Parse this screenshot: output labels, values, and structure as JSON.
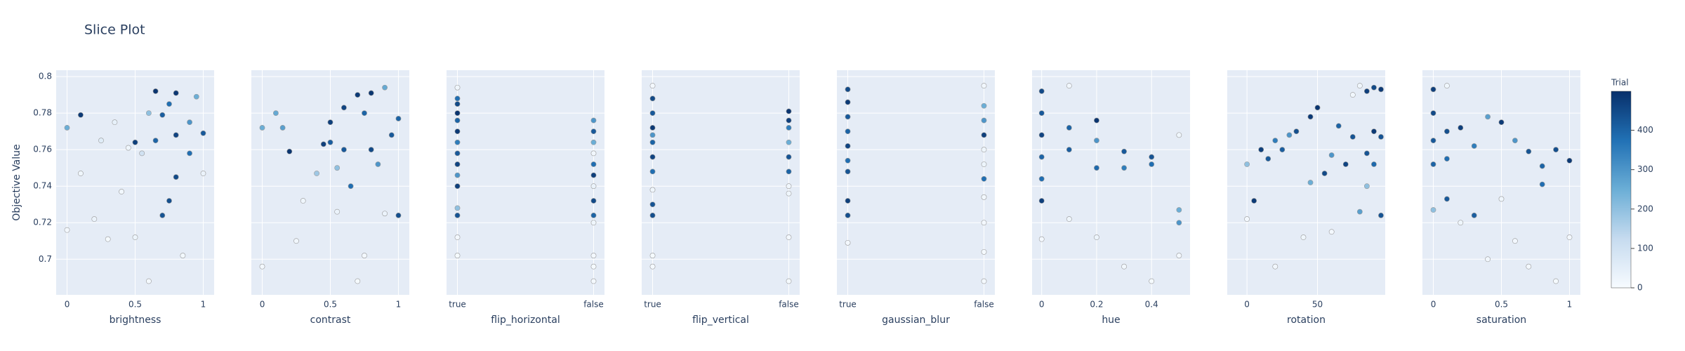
{
  "chart_data": {
    "type": "scatter",
    "title": "Slice Plot",
    "y_label": "Objective Value",
    "ylim": [
      0.6805,
      0.8035
    ],
    "yticks": [
      0.7,
      0.72,
      0.74,
      0.76,
      0.78,
      0.8
    ],
    "colorbar": {
      "title": "Trial",
      "lim": [
        0,
        499
      ],
      "ticks": [
        0,
        100,
        200,
        300,
        400
      ]
    },
    "panels": [
      {
        "x_label": "brightness",
        "xlim": [
          -0.08,
          1.08
        ],
        "xticks": [
          0,
          0.5,
          1
        ],
        "x": [
          0,
          0,
          0.1,
          0.1,
          0.2,
          0.25,
          0.3,
          0.35,
          0.4,
          0.45,
          0.5,
          0.5,
          0.55,
          0.6,
          0.65,
          0.65,
          0.7,
          0.7,
          0.75,
          0.75,
          0.8,
          0.8,
          0.8,
          0.85,
          0.9,
          0.9,
          0.95,
          1,
          1,
          0.6
        ],
        "y": [
          0.772,
          0.716,
          0.779,
          0.747,
          0.722,
          0.765,
          0.711,
          0.775,
          0.737,
          0.761,
          0.712,
          0.764,
          0.758,
          0.688,
          0.792,
          0.765,
          0.724,
          0.779,
          0.732,
          0.785,
          0.791,
          0.745,
          0.768,
          0.702,
          0.775,
          0.758,
          0.789,
          0.769,
          0.747,
          0.78
        ],
        "trial": [
          250,
          10,
          480,
          20,
          30,
          60,
          5,
          40,
          15,
          20,
          25,
          470,
          100,
          8,
          490,
          400,
          430,
          410,
          440,
          380,
          485,
          450,
          460,
          12,
          300,
          380,
          250,
          420,
          30,
          200
        ]
      },
      {
        "x_label": "contrast",
        "xlim": [
          -0.08,
          1.08
        ],
        "xticks": [
          0,
          0.5,
          1
        ],
        "x": [
          0,
          0,
          0.1,
          0.15,
          0.2,
          0.25,
          0.3,
          0.4,
          0.45,
          0.5,
          0.5,
          0.55,
          0.6,
          0.6,
          0.65,
          0.7,
          0.7,
          0.75,
          0.75,
          0.8,
          0.8,
          0.85,
          0.9,
          0.9,
          0.95,
          1,
          1,
          0.55
        ],
        "y": [
          0.772,
          0.696,
          0.78,
          0.772,
          0.759,
          0.71,
          0.732,
          0.747,
          0.763,
          0.764,
          0.775,
          0.726,
          0.783,
          0.76,
          0.74,
          0.79,
          0.688,
          0.78,
          0.702,
          0.791,
          0.76,
          0.752,
          0.794,
          0.725,
          0.768,
          0.777,
          0.724,
          0.75
        ],
        "trial": [
          250,
          10,
          260,
          280,
          490,
          15,
          20,
          180,
          470,
          410,
          470,
          30,
          460,
          420,
          380,
          480,
          5,
          400,
          10,
          490,
          450,
          300,
          260,
          30,
          420,
          400,
          440,
          200
        ]
      },
      {
        "x_label": "flip_horizontal",
        "categories": [
          "true",
          "false"
        ],
        "x": [
          "true",
          "true",
          "true",
          "true",
          "true",
          "true",
          "true",
          "true",
          "true",
          "true",
          "true",
          "true",
          "true",
          "true",
          "true",
          "false",
          "false",
          "false",
          "false",
          "false",
          "false",
          "false",
          "false",
          "false",
          "false",
          "false",
          "false",
          "false"
        ],
        "y": [
          0.794,
          0.785,
          0.776,
          0.77,
          0.764,
          0.758,
          0.752,
          0.746,
          0.74,
          0.728,
          0.724,
          0.712,
          0.702,
          0.788,
          0.78,
          0.776,
          0.77,
          0.764,
          0.758,
          0.752,
          0.746,
          0.732,
          0.724,
          0.72,
          0.702,
          0.696,
          0.688,
          0.74
        ],
        "trial": [
          20,
          450,
          400,
          480,
          350,
          420,
          460,
          300,
          470,
          200,
          430,
          10,
          5,
          380,
          490,
          300,
          420,
          250,
          15,
          380,
          470,
          450,
          400,
          20,
          10,
          5,
          8,
          30
        ]
      },
      {
        "x_label": "flip_vertical",
        "categories": [
          "true",
          "false"
        ],
        "x": [
          "true",
          "true",
          "true",
          "true",
          "true",
          "true",
          "true",
          "true",
          "true",
          "true",
          "true",
          "true",
          "true",
          "false",
          "false",
          "false",
          "false",
          "false",
          "false",
          "false",
          "false",
          "false",
          "false"
        ],
        "y": [
          0.795,
          0.788,
          0.78,
          0.772,
          0.764,
          0.756,
          0.748,
          0.738,
          0.73,
          0.724,
          0.702,
          0.696,
          0.768,
          0.781,
          0.776,
          0.772,
          0.764,
          0.756,
          0.748,
          0.74,
          0.736,
          0.712,
          0.688
        ],
        "trial": [
          10,
          450,
          420,
          480,
          400,
          460,
          380,
          20,
          430,
          440,
          5,
          8,
          300,
          490,
          470,
          350,
          250,
          430,
          400,
          15,
          20,
          10,
          5
        ]
      },
      {
        "x_label": "gaussian_blur",
        "categories": [
          "true",
          "false"
        ],
        "x": [
          "true",
          "true",
          "true",
          "true",
          "true",
          "true",
          "true",
          "true",
          "true",
          "true",
          "false",
          "false",
          "false",
          "false",
          "false",
          "false",
          "false",
          "false",
          "false",
          "false",
          "false"
        ],
        "y": [
          0.793,
          0.786,
          0.778,
          0.77,
          0.762,
          0.754,
          0.748,
          0.732,
          0.724,
          0.709,
          0.795,
          0.784,
          0.776,
          0.768,
          0.76,
          0.752,
          0.744,
          0.734,
          0.72,
          0.704,
          0.688
        ],
        "trial": [
          450,
          480,
          420,
          400,
          460,
          380,
          430,
          470,
          440,
          10,
          15,
          250,
          300,
          470,
          20,
          25,
          380,
          12,
          10,
          5,
          8
        ]
      },
      {
        "x_label": "hue",
        "xlim": [
          -0.035,
          0.54
        ],
        "xticks": [
          0,
          0.2,
          0.4
        ],
        "x": [
          0,
          0,
          0,
          0,
          0,
          0,
          0,
          0.1,
          0.1,
          0.1,
          0.1,
          0.2,
          0.2,
          0.2,
          0.2,
          0.3,
          0.3,
          0.3,
          0.4,
          0.4,
          0.4,
          0.5,
          0.5,
          0.5,
          0.5
        ],
        "y": [
          0.792,
          0.78,
          0.768,
          0.756,
          0.744,
          0.732,
          0.711,
          0.795,
          0.772,
          0.76,
          0.722,
          0.776,
          0.765,
          0.75,
          0.712,
          0.759,
          0.75,
          0.696,
          0.756,
          0.752,
          0.688,
          0.768,
          0.727,
          0.72,
          0.702
        ],
        "trial": [
          450,
          420,
          460,
          400,
          380,
          470,
          10,
          15,
          400,
          410,
          20,
          490,
          300,
          390,
          25,
          420,
          350,
          15,
          430,
          380,
          5,
          20,
          250,
          300,
          10
        ]
      },
      {
        "x_label": "rotation",
        "xlim": [
          -14,
          98
        ],
        "xticks": [
          0,
          50
        ],
        "x": [
          0,
          0,
          5,
          10,
          15,
          20,
          25,
          30,
          35,
          40,
          45,
          50,
          55,
          60,
          65,
          70,
          75,
          75,
          80,
          80,
          85,
          85,
          85,
          90,
          90,
          90,
          95,
          95,
          95,
          60,
          45,
          20
        ],
        "y": [
          0.752,
          0.722,
          0.732,
          0.76,
          0.755,
          0.765,
          0.76,
          0.768,
          0.77,
          0.712,
          0.778,
          0.783,
          0.747,
          0.757,
          0.773,
          0.752,
          0.79,
          0.767,
          0.795,
          0.726,
          0.792,
          0.758,
          0.74,
          0.794,
          0.77,
          0.752,
          0.793,
          0.767,
          0.724,
          0.715,
          0.742,
          0.696
        ],
        "trial": [
          200,
          10,
          480,
          470,
          420,
          350,
          410,
          300,
          440,
          20,
          480,
          490,
          450,
          300,
          400,
          460,
          15,
          430,
          20,
          280,
          470,
          430,
          200,
          450,
          480,
          390,
          480,
          430,
          430,
          10,
          250,
          15
        ]
      },
      {
        "x_label": "saturation",
        "xlim": [
          -0.08,
          1.08
        ],
        "xticks": [
          0,
          0.5,
          1
        ],
        "x": [
          0,
          0,
          0,
          0,
          0,
          0.1,
          0.1,
          0.1,
          0.1,
          0.2,
          0.2,
          0.3,
          0.3,
          0.4,
          0.4,
          0.5,
          0.5,
          0.6,
          0.6,
          0.7,
          0.7,
          0.8,
          0.8,
          0.9,
          0.9,
          1,
          1
        ],
        "y": [
          0.793,
          0.78,
          0.765,
          0.752,
          0.727,
          0.795,
          0.77,
          0.755,
          0.733,
          0.772,
          0.72,
          0.762,
          0.724,
          0.778,
          0.7,
          0.775,
          0.733,
          0.765,
          0.71,
          0.759,
          0.696,
          0.751,
          0.741,
          0.76,
          0.688,
          0.754,
          0.712
        ],
        "trial": [
          470,
          450,
          420,
          400,
          200,
          20,
          440,
          380,
          420,
          470,
          20,
          350,
          410,
          280,
          15,
          480,
          20,
          300,
          10,
          430,
          10,
          400,
          380,
          440,
          5,
          480,
          10
        ]
      }
    ]
  }
}
